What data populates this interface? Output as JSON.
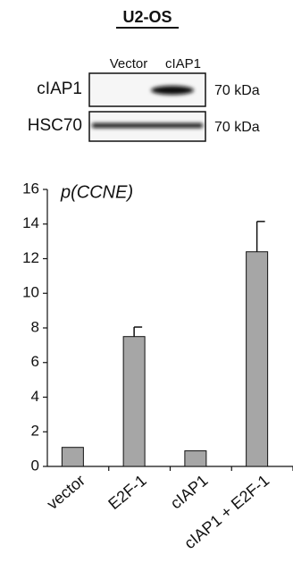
{
  "panel": {
    "title": "U2-OS",
    "blot": {
      "lanes": [
        "Vector",
        "cIAP1"
      ],
      "rows": [
        {
          "label": "cIAP1",
          "size": "70 kDa"
        },
        {
          "label": "HSC70",
          "size": "70 kDa"
        }
      ]
    }
  },
  "chart_data": {
    "type": "bar",
    "annotation": "p(CCNE)",
    "categories": [
      "vector",
      "E2F-1",
      "cIAP1",
      "cIAP1 + E2F-1"
    ],
    "values": [
      1.1,
      7.5,
      0.9,
      12.4
    ],
    "errors": [
      0,
      0.55,
      0,
      1.75
    ],
    "color": "#a6a6a6",
    "ylim": [
      0,
      16
    ],
    "yticks": [
      0,
      2,
      4,
      6,
      8,
      10,
      12,
      14,
      16
    ]
  }
}
